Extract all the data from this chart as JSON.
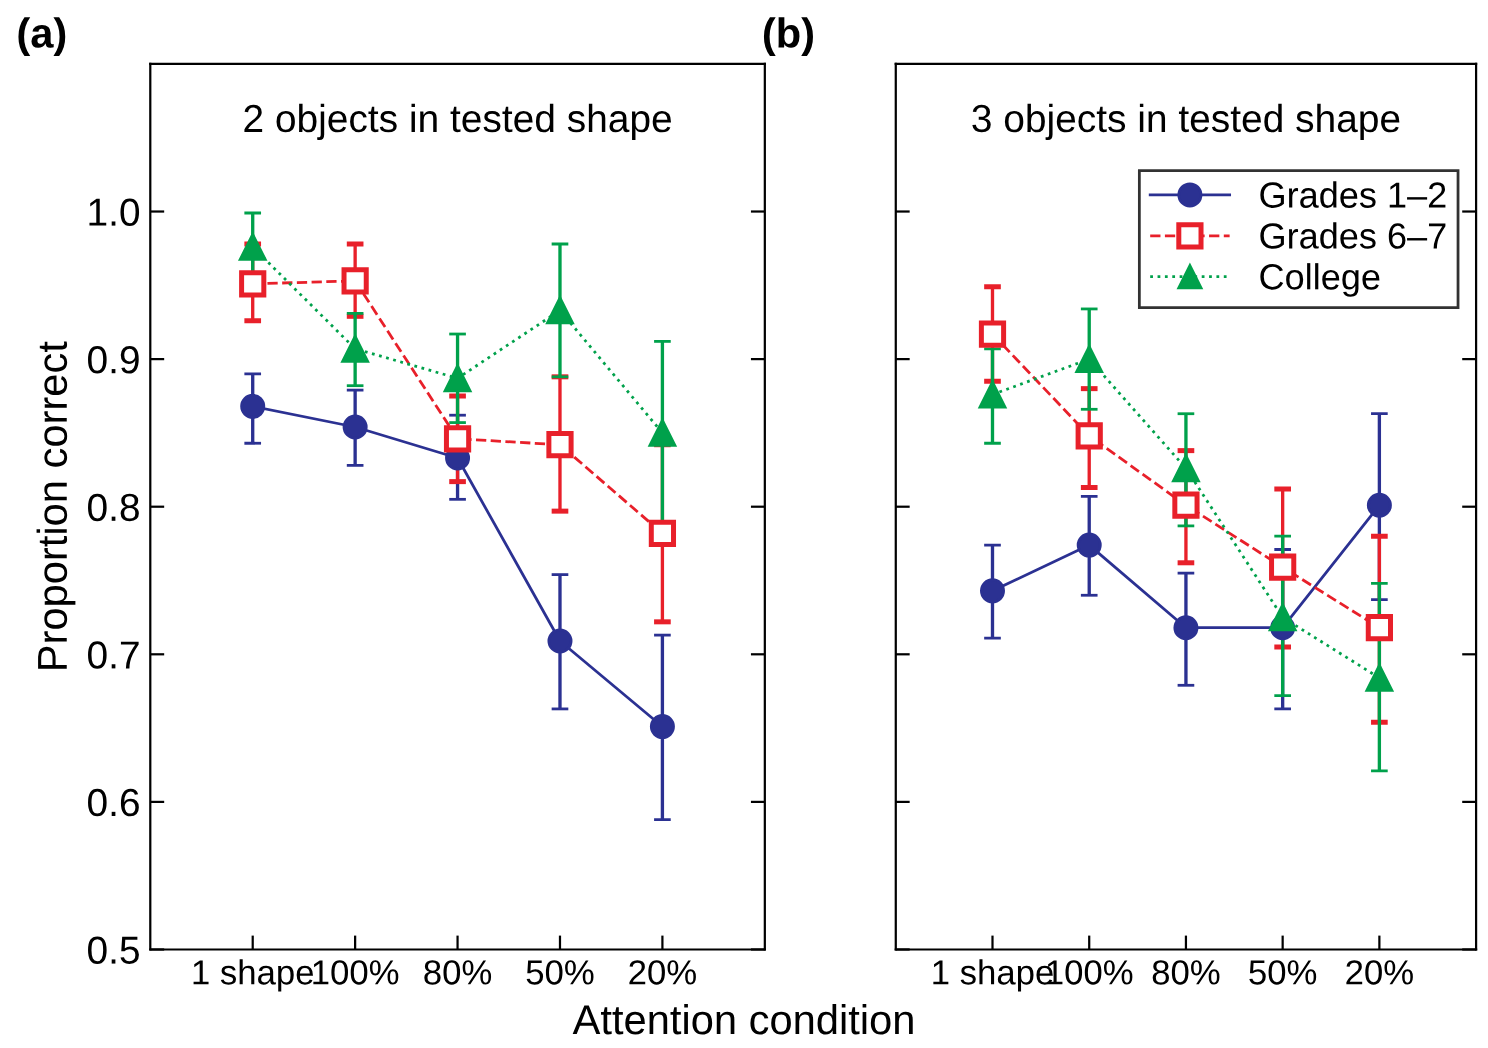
{
  "chart_data": [
    {
      "type": "line",
      "title": "2 objects in tested shape",
      "ylabel": "Proportion correct",
      "xlabel": "Attention condition",
      "annotations": [
        "(a)"
      ],
      "categories": [
        "1 shape",
        "100%",
        "80%",
        "50%",
        "20%"
      ],
      "ylim": [
        0.5,
        1.1
      ],
      "yticks": [
        0.5,
        0.6,
        0.7,
        0.8,
        0.9,
        {
          "value": 1.0,
          "label": "1.0"
        }
      ],
      "grid": false,
      "series": [
        {
          "color": "#2b3192",
          "marker": "circle",
          "line_style": "solid",
          "values": [
            0.868,
            0.854,
            0.833,
            0.709,
            0.651
          ],
          "errors": [
            [
              0.843,
              0.89
            ],
            [
              0.828,
              0.879
            ],
            [
              0.805,
              0.862
            ],
            [
              0.663,
              0.754
            ],
            [
              0.588,
              0.713
            ]
          ]
        },
        {
          "color": "#e8202a",
          "marker": "square",
          "line_style": "dashed",
          "values": [
            0.951,
            0.953,
            0.846,
            0.842,
            0.782
          ],
          "errors": [
            [
              0.926,
              0.978
            ],
            [
              0.929,
              0.978
            ],
            [
              0.817,
              0.875
            ],
            [
              0.797,
              0.888
            ],
            [
              0.722,
              0.842
            ]
          ]
        },
        {
          "color": "#00a14b",
          "marker": "triangle",
          "line_style": "dotted",
          "values": [
            0.976,
            0.907,
            0.887,
            0.933,
            0.85
          ],
          "errors": [
            [
              0.953,
              0.999
            ],
            [
              0.882,
              0.931
            ],
            [
              0.857,
              0.917
            ],
            [
              0.888,
              0.978
            ],
            [
              0.788,
              0.912
            ]
          ]
        }
      ]
    },
    {
      "type": "line",
      "title": "3 objects in tested shape",
      "annotations": [
        "(b)"
      ],
      "tick_labels": "x",
      "categories": [
        "1 shape",
        "100%",
        "80%",
        "50%",
        "20%"
      ],
      "ylim": [
        0.5,
        1.1
      ],
      "yticks": [
        {
          "value": 0.5,
          "label": null
        },
        {
          "value": 0.6,
          "label": null
        },
        {
          "value": 0.7,
          "label": null
        },
        {
          "value": 0.8,
          "label": null
        },
        {
          "value": 0.9,
          "label": null
        },
        {
          "value": 1.0,
          "label": null
        }
      ],
      "grid": false,
      "legend": "top right",
      "series": [
        {
          "name": "Grades 1–2",
          "color": "#2b3192",
          "marker": "circle",
          "line_style": "solid",
          "values": [
            0.743,
            0.774,
            0.718,
            0.718,
            0.801
          ],
          "errors": [
            [
              0.711,
              0.774
            ],
            [
              0.74,
              0.807
            ],
            [
              0.679,
              0.755
            ],
            [
              0.663,
              0.771
            ],
            [
              0.737,
              0.863
            ]
          ]
        },
        {
          "name": "Grades 6–7",
          "color": "#e8202a",
          "marker": "square",
          "line_style": "dashed",
          "values": [
            0.917,
            0.848,
            0.801,
            0.759,
            0.718
          ],
          "errors": [
            [
              0.885,
              0.949
            ],
            [
              0.813,
              0.88
            ],
            [
              0.762,
              0.838
            ],
            [
              0.705,
              0.812
            ],
            [
              0.654,
              0.78
            ]
          ]
        },
        {
          "name": "College",
          "color": "#00a14b",
          "marker": "triangle",
          "line_style": "dotted",
          "values": [
            0.876,
            0.9,
            0.826,
            0.725,
            0.684
          ],
          "errors": [
            [
              0.843,
              0.907
            ],
            [
              0.866,
              0.934
            ],
            [
              0.787,
              0.863
            ],
            [
              0.672,
              0.78
            ],
            [
              0.621,
              0.748
            ]
          ]
        }
      ]
    }
  ]
}
